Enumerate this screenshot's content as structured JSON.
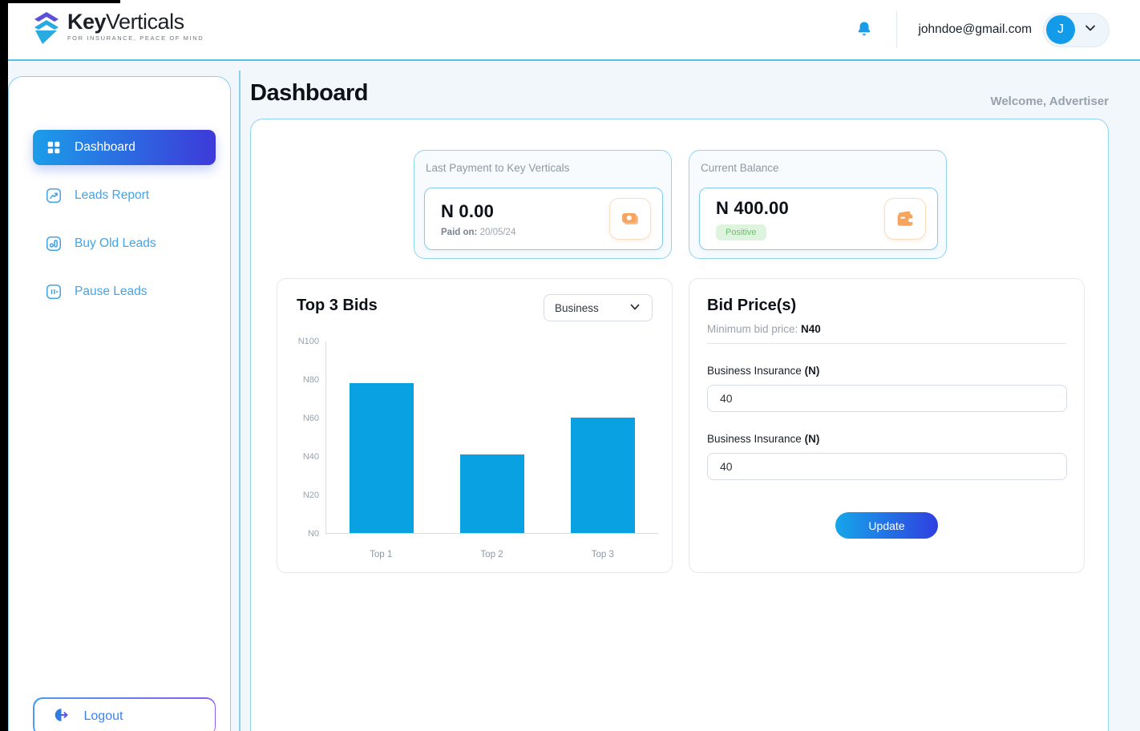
{
  "header": {
    "logo": {
      "key": "Key",
      "rest": "Verticals",
      "tagline": "FOR INSURANCE, PEACE OF MIND"
    },
    "user_email": "johndoe@gmail.com",
    "avatar_initial": "J"
  },
  "sidebar": {
    "items": [
      {
        "label": "Dashboard",
        "icon": "grid-icon",
        "active": true
      },
      {
        "label": "Leads Report",
        "icon": "leads-report-icon",
        "active": false
      },
      {
        "label": "Buy Old Leads",
        "icon": "buy-old-leads-icon",
        "active": false
      },
      {
        "label": "Pause Leads",
        "icon": "pause-leads-icon",
        "active": false
      }
    ],
    "logout_label": "Logout"
  },
  "page": {
    "title": "Dashboard",
    "welcome": "Welcome, Advertiser"
  },
  "stats": {
    "last_payment": {
      "label": "Last Payment to Key Verticals",
      "amount": "N 0.00",
      "paid_on_label": "Paid on:",
      "paid_on_value": "20/05/24",
      "icon": "cash-icon"
    },
    "current_balance": {
      "label": "Current Balance",
      "amount": "N 400.00",
      "badge": "Positive",
      "icon": "wallet-icon"
    }
  },
  "chart_data": {
    "type": "bar",
    "title": "Top 3 Bids",
    "filter_selected": "Business",
    "categories": [
      "Top 1",
      "Top 2",
      "Top 3"
    ],
    "values": [
      78,
      41,
      60
    ],
    "ylim": [
      0,
      100
    ],
    "ytick_labels": [
      "N100",
      "N80",
      "N60",
      "N40",
      "N20",
      "N0"
    ],
    "grid": false,
    "bar_color": "#0aa1e2"
  },
  "bid_panel": {
    "title": "Bid Price(s)",
    "min_bid_label": "Minimum bid price:",
    "min_bid_value": "N40",
    "fields": [
      {
        "label": "Business Insurance",
        "unit": "(N)",
        "value": "40"
      },
      {
        "label": "Business Insurance",
        "unit": "(N)",
        "value": "40"
      }
    ],
    "update_label": "Update"
  },
  "colors": {
    "accent_gradient_start": "#1b9de9",
    "accent_gradient_end": "#3d3ad9",
    "bar_blue": "#0aa1e2",
    "sidebar_link": "#42a4ea",
    "badge_bg": "#dff4de",
    "badge_text": "#6cc06c",
    "icon_orange": "#f5a55f",
    "panel_border_blue": "#8ed4f3",
    "header_divider": "#56c0ea"
  }
}
